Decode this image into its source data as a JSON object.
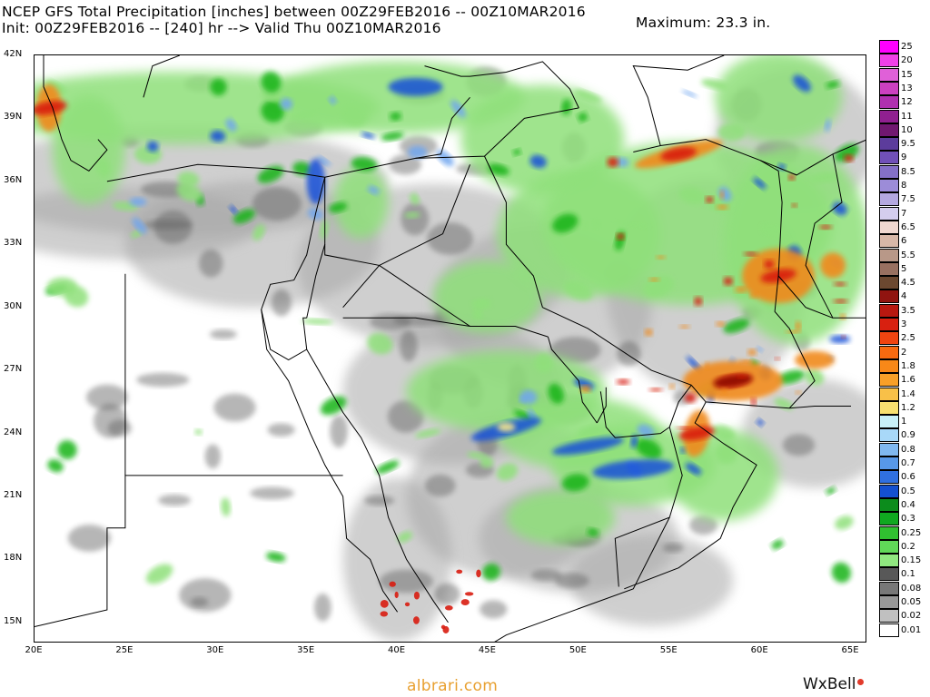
{
  "header": {
    "line1": "NCEP GFS Total Precipitation [inches] between 00Z29FEB2016 -- 00Z10MAR2016",
    "line2": "Init: 00Z29FEB2016 -- [240] hr --> Valid Thu 00Z10MAR2016",
    "maximum": "Maximum: 23.3 in."
  },
  "map": {
    "lat_labels": [
      {
        "text": "42N",
        "lat": 42
      },
      {
        "text": "39N",
        "lat": 39
      },
      {
        "text": "36N",
        "lat": 36
      },
      {
        "text": "33N",
        "lat": 33
      },
      {
        "text": "30N",
        "lat": 30
      },
      {
        "text": "27N",
        "lat": 27
      },
      {
        "text": "24N",
        "lat": 24
      },
      {
        "text": "21N",
        "lat": 21
      },
      {
        "text": "18N",
        "lat": 18
      },
      {
        "text": "15N",
        "lat": 15
      }
    ],
    "lon_labels": [
      {
        "text": "20E",
        "lon": 20
      },
      {
        "text": "25E",
        "lon": 25
      },
      {
        "text": "30E",
        "lon": 30
      },
      {
        "text": "35E",
        "lon": 35
      },
      {
        "text": "40E",
        "lon": 40
      },
      {
        "text": "45E",
        "lon": 45
      },
      {
        "text": "50E",
        "lon": 50
      },
      {
        "text": "55E",
        "lon": 55
      },
      {
        "text": "60E",
        "lon": 60
      },
      {
        "text": "65E",
        "lon": 65
      }
    ],
    "extent": {
      "lon_min": 20,
      "lon_max": 65.9,
      "lat_min": 14,
      "lat_max": 42
    },
    "colors": {
      "trace": "#a8a8a8",
      "grey_dark": "#606060",
      "green_light": "#8fe07a",
      "green": "#19b319",
      "blue_light": "#6fa6ef",
      "blue": "#1450d8",
      "yellow": "#f8e88a",
      "orange": "#f08a1e",
      "red": "#d81c10",
      "darkred": "#8c0a06"
    },
    "heavy_precip_areas": [
      {
        "lon": 58.5,
        "lat": 26.5,
        "level": "red"
      },
      {
        "lon": 61,
        "lat": 31.5,
        "level": "red"
      },
      {
        "lon": 55.5,
        "lat": 37.3,
        "level": "red"
      },
      {
        "lon": 20.8,
        "lat": 39.5,
        "level": "red"
      },
      {
        "lon": 56.5,
        "lat": 24,
        "level": "red"
      }
    ]
  },
  "legend": {
    "bins": [
      {
        "label": "25",
        "color": "#ff00ff"
      },
      {
        "label": "20",
        "color": "#f040e8"
      },
      {
        "label": "15",
        "color": "#e060d8"
      },
      {
        "label": "13",
        "color": "#cc40c0"
      },
      {
        "label": "12",
        "color": "#b030b0"
      },
      {
        "label": "11",
        "color": "#902090"
      },
      {
        "label": "10",
        "color": "#701870"
      },
      {
        "label": "9.5",
        "color": "#5c3c9c"
      },
      {
        "label": "9",
        "color": "#7050b8"
      },
      {
        "label": "8.5",
        "color": "#8470c8"
      },
      {
        "label": "8",
        "color": "#9c8cd8"
      },
      {
        "label": "7.5",
        "color": "#b4a8e0"
      },
      {
        "label": "7",
        "color": "#d4cdee"
      },
      {
        "label": "6.5",
        "color": "#f0d8d0"
      },
      {
        "label": "6",
        "color": "#d8b8a8"
      },
      {
        "label": "5.5",
        "color": "#b89888"
      },
      {
        "label": "5",
        "color": "#987060"
      },
      {
        "label": "4.5",
        "color": "#6c4830"
      },
      {
        "label": "4",
        "color": "#901410"
      },
      {
        "label": "3.5",
        "color": "#b81810"
      },
      {
        "label": "3",
        "color": "#d82010"
      },
      {
        "label": "2.5",
        "color": "#f04410"
      },
      {
        "label": "2",
        "color": "#f86a10"
      },
      {
        "label": "1.8",
        "color": "#f88818"
      },
      {
        "label": "1.6",
        "color": "#f8a028"
      },
      {
        "label": "1.4",
        "color": "#f8c048"
      },
      {
        "label": "1.2",
        "color": "#f8e070"
      },
      {
        "label": "1",
        "color": "#c8f0f8"
      },
      {
        "label": "0.9",
        "color": "#a8d8f8"
      },
      {
        "label": "0.8",
        "color": "#80b8f0"
      },
      {
        "label": "0.7",
        "color": "#5898e8"
      },
      {
        "label": "0.6",
        "color": "#3070e0"
      },
      {
        "label": "0.5",
        "color": "#1450d0"
      },
      {
        "label": "0.4",
        "color": "#0c8c1c"
      },
      {
        "label": "0.3",
        "color": "#10a820"
      },
      {
        "label": "0.25",
        "color": "#30c030"
      },
      {
        "label": "0.2",
        "color": "#60d858"
      },
      {
        "label": "0.15",
        "color": "#90e880"
      },
      {
        "label": "0.1",
        "color": "#585858"
      },
      {
        "label": "0.08",
        "color": "#787878"
      },
      {
        "label": "0.05",
        "color": "#989898"
      },
      {
        "label": "0.02",
        "color": "#c0c0c0"
      },
      {
        "label": "0.01",
        "color": "#ffffff"
      }
    ]
  },
  "footer": {
    "credit": "albrari.com",
    "brand": "WxBell"
  }
}
